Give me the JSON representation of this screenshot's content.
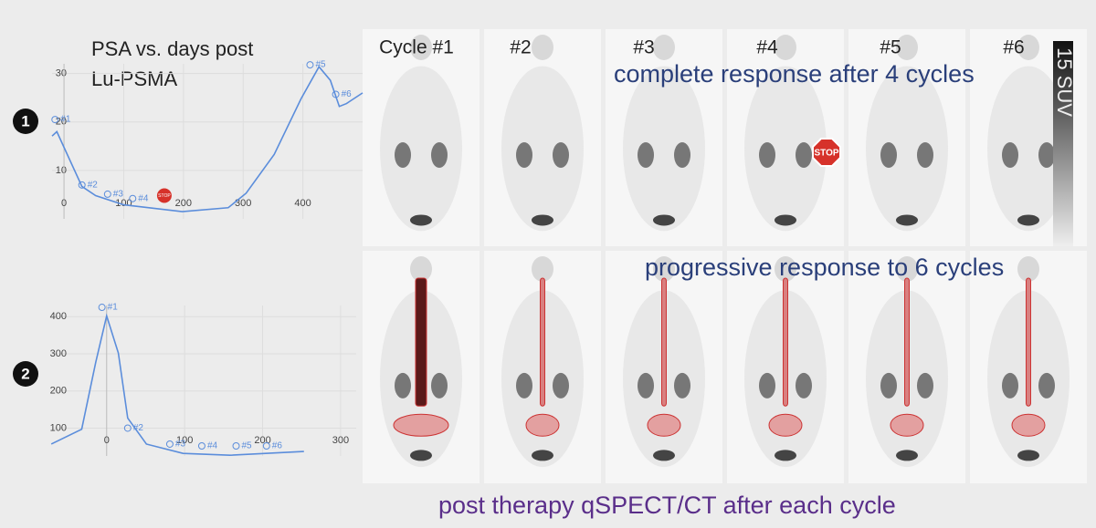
{
  "slide": {
    "badges": [
      "1",
      "2"
    ],
    "columns": [
      "Cycle #1",
      "#2",
      "#3",
      "#4",
      "#5",
      "#6"
    ],
    "response_top": "complete response after 4 cycles",
    "response_bottom": "progressive response to 6 cycles",
    "footer": "post therapy qSPECT/CT after each cycle",
    "scale": "15 SUV",
    "stop": "STOP"
  },
  "chart_data": [
    {
      "type": "line",
      "title": [
        "PSA vs. days post",
        "Lu-PSMA"
      ],
      "color": "#5b8ddb",
      "grid": true,
      "x": [
        -20,
        -12,
        30,
        53,
        100,
        198,
        275,
        305,
        352,
        397,
        427,
        446,
        461,
        473,
        500
      ],
      "values": [
        17.1,
        18,
        6.7,
        4.8,
        2.9,
        1.5,
        2.3,
        5.3,
        13.3,
        24.8,
        31.4,
        28.6,
        23.2,
        23.8,
        26
      ],
      "xlim": [
        -20,
        500
      ],
      "ylim": [
        0,
        32
      ],
      "xticks": [
        0,
        100,
        200,
        300,
        400
      ],
      "yticks": [
        10,
        20,
        30
      ],
      "markers": [
        {
          "label": "#1",
          "x": -15,
          "y": 20.5
        },
        {
          "label": "#2",
          "x": 30,
          "y": 7
        },
        {
          "label": "#3",
          "x": 73,
          "y": 5.1
        },
        {
          "label": "#4",
          "x": 115,
          "y": 4.2
        },
        {
          "label": "#5",
          "x": 412,
          "y": 31.8
        },
        {
          "label": "#6",
          "x": 455,
          "y": 25.7
        }
      ],
      "stop": {
        "label": "STOP",
        "x": 168,
        "y": 4.8
      }
    },
    {
      "type": "line",
      "color": "#5b8ddb",
      "grid": true,
      "x": [
        -71,
        -32,
        -14,
        0,
        15,
        27,
        51,
        98,
        158,
        253
      ],
      "values": [
        57,
        97,
        277,
        402,
        302,
        127,
        57,
        32,
        27,
        37
      ],
      "xlim": [
        -70,
        320
      ],
      "ylim": [
        25,
        430
      ],
      "xticks": [
        0,
        100,
        200,
        300
      ],
      "yticks": [
        100,
        200,
        300,
        400
      ],
      "markers": [
        {
          "label": "#1",
          "x": -6,
          "y": 425
        },
        {
          "label": "#2",
          "x": 27,
          "y": 100
        },
        {
          "label": "#3",
          "x": 81,
          "y": 57
        },
        {
          "label": "#4",
          "x": 122,
          "y": 52
        },
        {
          "label": "#5",
          "x": 166,
          "y": 52
        },
        {
          "label": "#6",
          "x": 205,
          "y": 52
        }
      ]
    }
  ]
}
